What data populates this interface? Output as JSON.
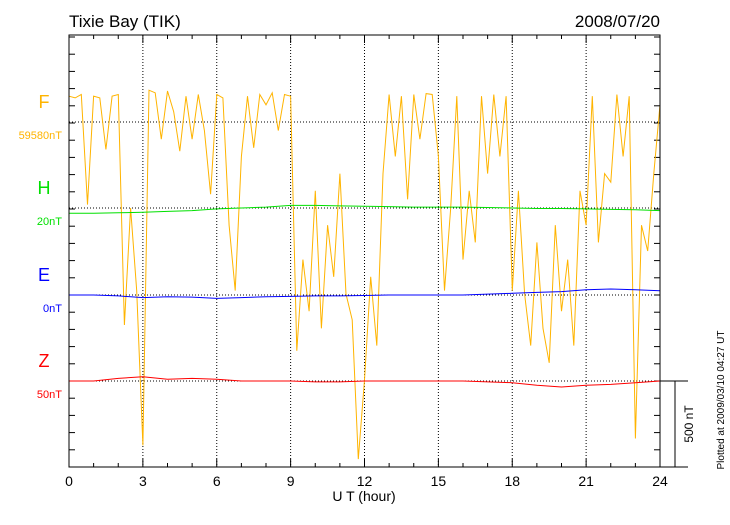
{
  "chart_data": {
    "type": "line",
    "title": "Tixie Bay (TIK)",
    "date": "2008/07/20",
    "xlabel": "U T (hour)",
    "xlim": [
      0,
      24
    ],
    "xticks": [
      "0",
      "3",
      "6",
      "9",
      "12",
      "15",
      "18",
      "21",
      "24"
    ],
    "scale_bar": "500 nT",
    "plotted_note": "Plotted at 2009/03/10 04:27 UT",
    "grid": true,
    "series": [
      {
        "name": "F",
        "baseline_label": "59580nT",
        "color": "#ffb400",
        "step_hours": 0.25,
        "values": [
          150,
          140,
          160,
          -480,
          150,
          140,
          -160,
          150,
          160,
          -1180,
          -500,
          -980,
          -1880,
          185,
          170,
          -100,
          180,
          60,
          -170,
          150,
          -100,
          160,
          -50,
          -420,
          160,
          140,
          -600,
          -980,
          -200,
          150,
          -150,
          160,
          100,
          170,
          -50,
          160,
          150,
          -1330,
          -800,
          -1100,
          -400,
          -1200,
          -600,
          -900,
          -300,
          -1000,
          -1150,
          -1960,
          -1500,
          -900,
          -1300,
          -300,
          160,
          -200,
          150,
          -450,
          160,
          -100,
          165,
          160,
          -200,
          -980,
          -500,
          150,
          -800,
          -400,
          -700,
          150,
          -300,
          160,
          -200,
          150,
          -980,
          -400,
          -1000,
          -1300,
          -700,
          -1200,
          -1400,
          -600,
          -1100,
          -800,
          -1300,
          -400,
          -600,
          150,
          -700,
          -300,
          -350,
          160,
          -200,
          150,
          -1840,
          -600,
          -750,
          -300,
          100
        ]
      },
      {
        "name": "H",
        "baseline_label": "20nT",
        "color": "#00e000",
        "step_hours": 1,
        "values": [
          -30,
          -30,
          -28,
          -25,
          -20,
          -15,
          -5,
          0,
          5,
          15,
          15,
          12,
          10,
          8,
          5,
          5,
          5,
          3,
          0,
          -3,
          -3,
          -5,
          -8,
          -10,
          -15
        ]
      },
      {
        "name": "E",
        "baseline_label": "0nT",
        "color": "#0000ff",
        "step_hours": 1,
        "values": [
          0,
          0,
          -5,
          -15,
          -10,
          -12,
          -20,
          -15,
          -10,
          -8,
          -5,
          -5,
          -3,
          0,
          0,
          0,
          0,
          5,
          10,
          15,
          20,
          30,
          35,
          30,
          25
        ]
      },
      {
        "name": "Z",
        "baseline_label": "50nT",
        "color": "#ff0000",
        "step_hours": 1,
        "values": [
          0,
          0,
          15,
          25,
          10,
          15,
          10,
          0,
          0,
          0,
          -5,
          -5,
          0,
          0,
          0,
          0,
          0,
          -5,
          -10,
          -25,
          -35,
          -25,
          -20,
          -10,
          0
        ]
      }
    ]
  }
}
